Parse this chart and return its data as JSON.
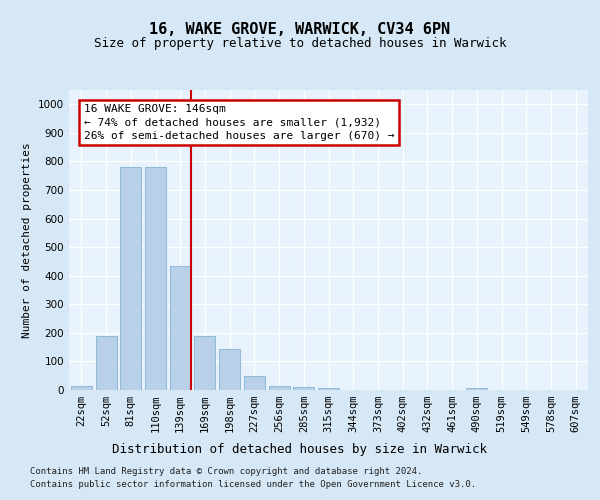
{
  "title": "16, WAKE GROVE, WARWICK, CV34 6PN",
  "subtitle": "Size of property relative to detached houses in Warwick",
  "xlabel": "Distribution of detached houses by size in Warwick",
  "ylabel": "Number of detached properties",
  "categories": [
    "22sqm",
    "52sqm",
    "81sqm",
    "110sqm",
    "139sqm",
    "169sqm",
    "198sqm",
    "227sqm",
    "256sqm",
    "285sqm",
    "315sqm",
    "344sqm",
    "373sqm",
    "402sqm",
    "432sqm",
    "461sqm",
    "490sqm",
    "519sqm",
    "549sqm",
    "578sqm",
    "607sqm"
  ],
  "values": [
    15,
    190,
    780,
    780,
    435,
    190,
    145,
    50,
    15,
    10,
    8,
    0,
    0,
    0,
    0,
    0,
    8,
    0,
    0,
    0,
    0
  ],
  "bar_color": "#b8d0e8",
  "bar_edge_color": "#90b8d8",
  "vline_x_index": 4,
  "vline_color": "#cc0000",
  "annotation_text": "16 WAKE GROVE: 146sqm\n← 74% of detached houses are smaller (1,932)\n26% of semi-detached houses are larger (670) →",
  "annotation_box_color": "#ffffff",
  "annotation_box_edge": "#cc0000",
  "ylim": [
    0,
    1050
  ],
  "yticks": [
    0,
    100,
    200,
    300,
    400,
    500,
    600,
    700,
    800,
    900,
    1000
  ],
  "footer_line1": "Contains HM Land Registry data © Crown copyright and database right 2024.",
  "footer_line2": "Contains public sector information licensed under the Open Government Licence v3.0.",
  "bg_color": "#d6e8f5",
  "plot_bg_color": "#e8f2fc",
  "grid_color": "#ffffff",
  "title_fontsize": 11,
  "subtitle_fontsize": 9,
  "ylabel_fontsize": 8,
  "xlabel_fontsize": 9,
  "tick_fontsize": 7.5,
  "footer_fontsize": 6.5
}
